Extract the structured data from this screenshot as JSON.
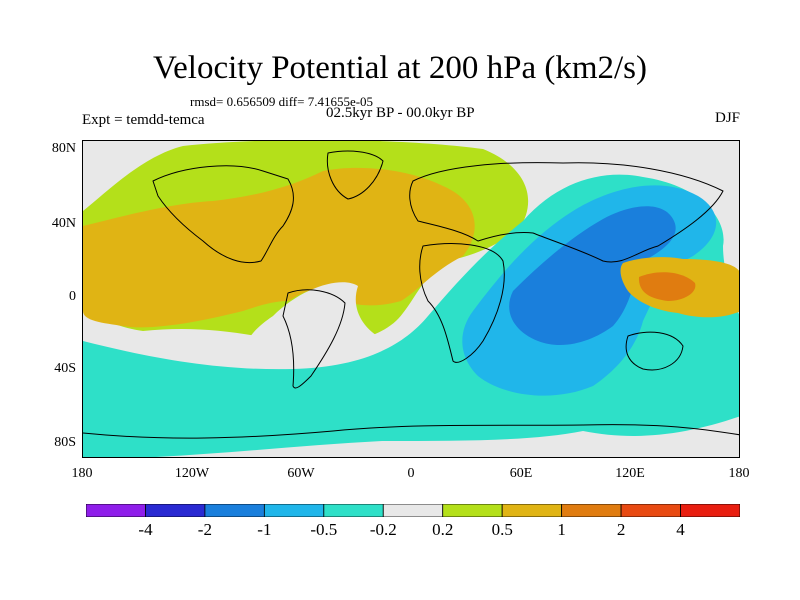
{
  "title": "Velocity Potential at 200 hPa (km2/s)",
  "stats": "rmsd= 0.656509 diff= 7.41655e-05",
  "expt": "Expt = temdd-temca",
  "period": "02.5kyr BP - 00.0kyr BP",
  "season": "DJF",
  "lat_labels": [
    "80N",
    "40N",
    "0",
    "40S",
    "80S"
  ],
  "lon_labels": [
    "180",
    "120W",
    "60W",
    "0",
    "60E",
    "120E",
    "180"
  ],
  "colorbar": {
    "labels": [
      "-4",
      "-2",
      "-1",
      "-0.5",
      "-0.2",
      "0.2",
      "0.5",
      "1",
      "2",
      "4"
    ],
    "colors": [
      "#8f1eea",
      "#2a2ad2",
      "#1a7fdc",
      "#20b6ea",
      "#2ee0c8",
      "#e8e8e8",
      "#b4e01a",
      "#e0b414",
      "#e07c10",
      "#e84a12",
      "#e81e10"
    ]
  },
  "map_colors": {
    "neutral": "#e8e8e8",
    "weak_positive": "#b4e01a",
    "positive": "#e0b414",
    "strong_positive": "#e07c10",
    "weak_negative": "#2ee0c8",
    "negative": "#20b6ea",
    "strong_negative": "#1a7fdc"
  }
}
